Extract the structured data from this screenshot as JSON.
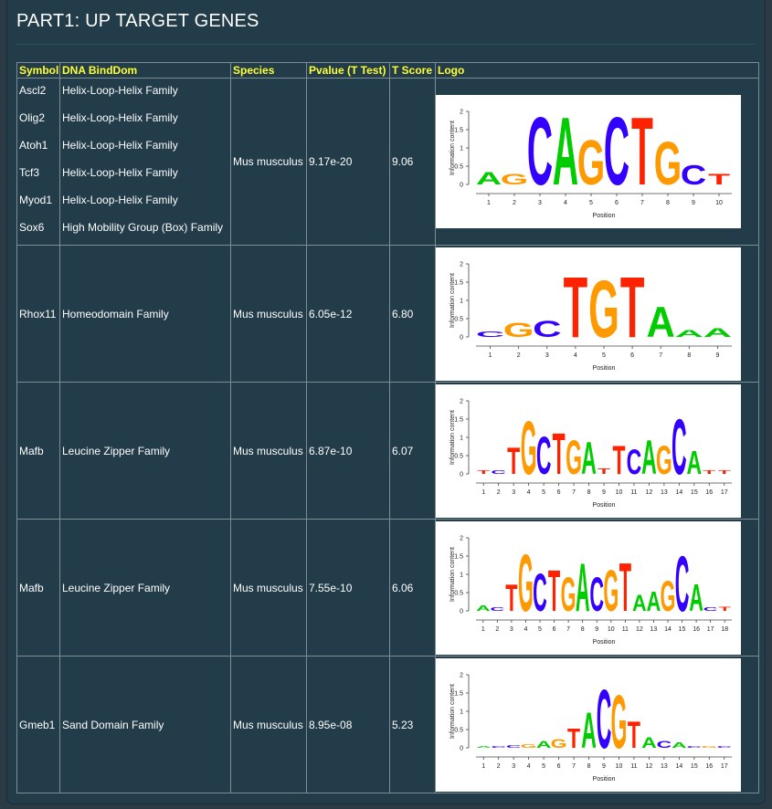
{
  "page": {
    "title": "PART1: UP TARGET GENES"
  },
  "table": {
    "headers": [
      "Symbol",
      "DNA BindDom",
      "Species",
      "Pvalue (T Test)",
      "T Score",
      "Logo"
    ],
    "rows": [
      {
        "symbols": [
          "Ascl2",
          "Olig2",
          "Atoh1",
          "Tcf3",
          "Myod1",
          "Sox6"
        ],
        "domains": [
          "Helix-Loop-Helix Family",
          "Helix-Loop-Helix Family",
          "Helix-Loop-Helix Family",
          "Helix-Loop-Helix Family",
          "Helix-Loop-Helix Family",
          "High Mobility Group (Box) Family"
        ],
        "species": "Mus musculus",
        "pvalue": "9.17e-20",
        "tscore": "9.06",
        "logo": {
          "ylabel": "Information content",
          "xlabel": "Position",
          "yticks": [
            "2",
            "1.5",
            "1",
            "0.5",
            "0"
          ],
          "positions": [
            "1",
            "2",
            "3",
            "4",
            "5",
            "6",
            "7",
            "8",
            "9",
            "10"
          ],
          "letters": [
            {
              "l": "A",
              "h": 0.35
            },
            {
              "l": "G",
              "h": 0.3
            },
            {
              "l": "C",
              "h": 1.9
            },
            {
              "l": "A",
              "h": 1.9
            },
            {
              "l": "G",
              "h": 1.25
            },
            {
              "l": "C",
              "h": 1.9
            },
            {
              "l": "T",
              "h": 1.9
            },
            {
              "l": "G",
              "h": 1.2
            },
            {
              "l": "C",
              "h": 0.55
            },
            {
              "l": "T",
              "h": 0.3
            }
          ]
        }
      },
      {
        "symbols": [
          "Rhox11"
        ],
        "domains": [
          "Homeodomain Family"
        ],
        "species": "Mus musculus",
        "pvalue": "6.05e-12",
        "tscore": "6.80",
        "logo": {
          "ylabel": "Information content",
          "xlabel": "Position",
          "yticks": [
            "2",
            "1.5",
            "1",
            "0.5",
            "0"
          ],
          "positions": [
            "1",
            "2",
            "3",
            "4",
            "5",
            "6",
            "7",
            "8",
            "9"
          ],
          "letters": [
            {
              "l": "C",
              "h": 0.15
            },
            {
              "l": "G",
              "h": 0.4
            },
            {
              "l": "C",
              "h": 0.45
            },
            {
              "l": "T",
              "h": 1.7
            },
            {
              "l": "G",
              "h": 1.6
            },
            {
              "l": "T",
              "h": 1.7
            },
            {
              "l": "A",
              "h": 0.85
            },
            {
              "l": "A",
              "h": 0.2
            },
            {
              "l": "A",
              "h": 0.25
            }
          ]
        }
      },
      {
        "symbols": [
          "Mafb"
        ],
        "domains": [
          "Leucine Zipper Family"
        ],
        "species": "Mus musculus",
        "pvalue": "6.87e-10",
        "tscore": "6.07",
        "logo": {
          "ylabel": "Information content",
          "xlabel": "Position",
          "yticks": [
            "2",
            "1.5",
            "1",
            "0.5",
            "0"
          ],
          "positions": [
            "1",
            "2",
            "3",
            "4",
            "5",
            "6",
            "7",
            "8",
            "9",
            "10",
            "11",
            "12",
            "13",
            "14",
            "15",
            "16",
            "17"
          ],
          "letters": [
            {
              "l": "T",
              "h": 0.1
            },
            {
              "l": "C",
              "h": 0.1
            },
            {
              "l": "T",
              "h": 0.75
            },
            {
              "l": "G",
              "h": 1.5
            },
            {
              "l": "C",
              "h": 1.05
            },
            {
              "l": "T",
              "h": 1.15
            },
            {
              "l": "G",
              "h": 0.95
            },
            {
              "l": "A",
              "h": 0.9
            },
            {
              "l": "T",
              "h": 0.15
            },
            {
              "l": "T",
              "h": 0.8
            },
            {
              "l": "C",
              "h": 0.7
            },
            {
              "l": "A",
              "h": 0.95
            },
            {
              "l": "G",
              "h": 0.8
            },
            {
              "l": "C",
              "h": 1.55
            },
            {
              "l": "A",
              "h": 0.65
            },
            {
              "l": "T",
              "h": 0.1
            },
            {
              "l": "T",
              "h": 0.1
            }
          ]
        }
      },
      {
        "symbols": [
          "Mafb"
        ],
        "domains": [
          "Leucine Zipper Family"
        ],
        "species": "Mus musculus",
        "pvalue": "7.55e-10",
        "tscore": "6.06",
        "logo": {
          "ylabel": "Information content",
          "xlabel": "Position",
          "yticks": [
            "2",
            "1.5",
            "1",
            "0.5",
            "0"
          ],
          "positions": [
            "1",
            "2",
            "3",
            "4",
            "5",
            "6",
            "7",
            "8",
            "9",
            "10",
            "11",
            "12",
            "13",
            "14",
            "15",
            "16",
            "17",
            "18"
          ],
          "letters": [
            {
              "l": "A",
              "h": 0.15
            },
            {
              "l": "C",
              "h": 0.1
            },
            {
              "l": "T",
              "h": 0.75
            },
            {
              "l": "G",
              "h": 1.6
            },
            {
              "l": "C",
              "h": 1.05
            },
            {
              "l": "T",
              "h": 1.15
            },
            {
              "l": "G",
              "h": 0.95
            },
            {
              "l": "A",
              "h": 1.35
            },
            {
              "l": "C",
              "h": 0.95
            },
            {
              "l": "G",
              "h": 1.15
            },
            {
              "l": "T",
              "h": 1.35
            },
            {
              "l": "A",
              "h": 0.45
            },
            {
              "l": "A",
              "h": 0.55
            },
            {
              "l": "G",
              "h": 0.85
            },
            {
              "l": "C",
              "h": 1.55
            },
            {
              "l": "A",
              "h": 0.75
            },
            {
              "l": "C",
              "h": 0.1
            },
            {
              "l": "T",
              "h": 0.12
            }
          ]
        }
      },
      {
        "symbols": [
          "Gmeb1"
        ],
        "domains": [
          "Sand Domain Family"
        ],
        "species": "Mus musculus",
        "pvalue": "8.95e-08",
        "tscore": "5.23",
        "logo": {
          "ylabel": "Information content",
          "xlabel": "Position",
          "yticks": [
            "2",
            "1.5",
            "1",
            "0.5",
            "0"
          ],
          "positions": [
            "1",
            "2",
            "3",
            "4",
            "5",
            "6",
            "7",
            "8",
            "9",
            "10",
            "11",
            "12",
            "13",
            "14",
            "15",
            "16",
            "17"
          ],
          "letters": [
            {
              "l": "A",
              "h": 0.05
            },
            {
              "l": "C",
              "h": 0.05
            },
            {
              "l": "C",
              "h": 0.08
            },
            {
              "l": "G",
              "h": 0.1
            },
            {
              "l": "A",
              "h": 0.2
            },
            {
              "l": "G",
              "h": 0.25
            },
            {
              "l": "T",
              "h": 0.55
            },
            {
              "l": "A",
              "h": 1.0
            },
            {
              "l": "C",
              "h": 1.65
            },
            {
              "l": "G",
              "h": 1.5
            },
            {
              "l": "T",
              "h": 0.75
            },
            {
              "l": "A",
              "h": 0.3
            },
            {
              "l": "C",
              "h": 0.2
            },
            {
              "l": "A",
              "h": 0.15
            },
            {
              "l": "C",
              "h": 0.05
            },
            {
              "l": "G",
              "h": 0.05
            },
            {
              "l": "C",
              "h": 0.05
            }
          ]
        }
      }
    ]
  },
  "colors": {
    "A": "#00cc00",
    "C": "#3300ff",
    "G": "#ff9900",
    "T": "#ff2200",
    "header_text": "#ffff33",
    "background": "#223c49"
  }
}
